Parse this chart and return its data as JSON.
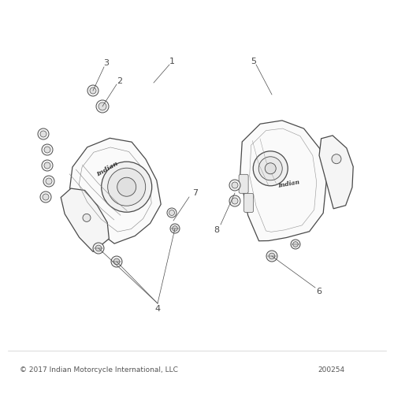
{
  "bg_color": "#ffffff",
  "line_color": "#4a4a4a",
  "label_color": "#4a4a4a",
  "copyright_text": "© 2017 Indian Motorcycle International, LLC",
  "doc_number": "200254",
  "font_size_label": 8,
  "font_size_copyright": 6.5,
  "font_size_docnum": 6.5,
  "indian_text": "Indian",
  "lw_main": 0.9,
  "lw_thin": 0.6,
  "lw_leader": 0.5
}
